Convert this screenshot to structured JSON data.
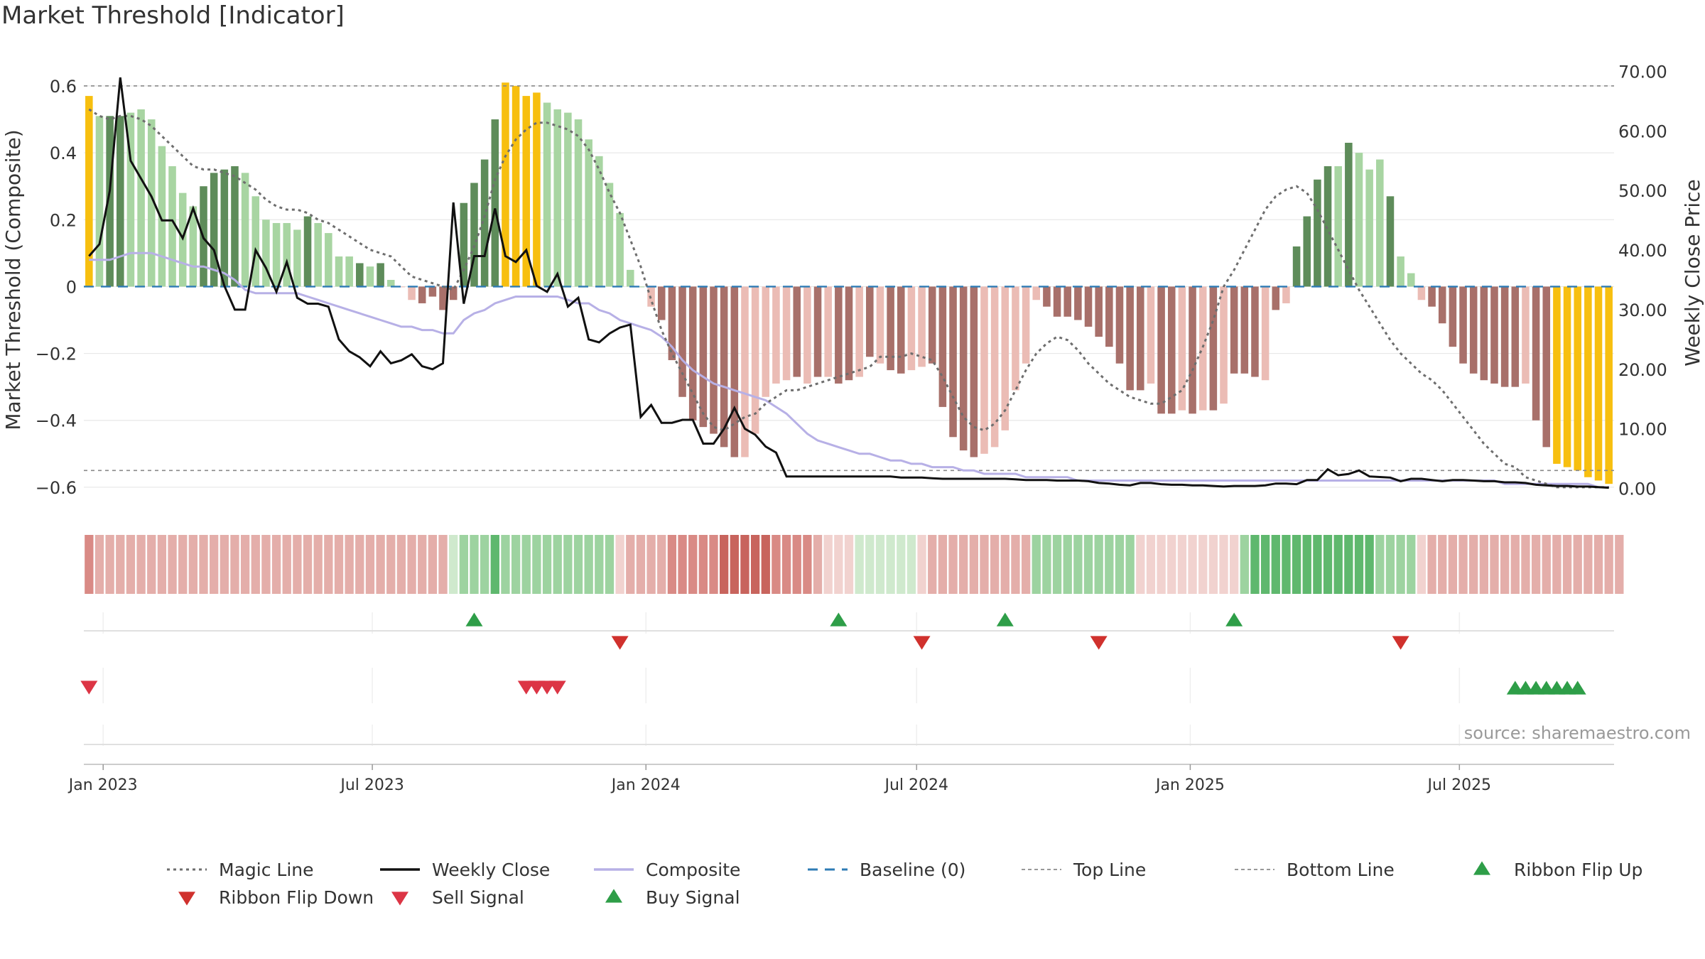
{
  "chart_data": {
    "type": "bar",
    "title": "Market Threshold [Indicator]",
    "ylabel": "Market Threshold (Composite)",
    "y2label": "Weekly Close Price",
    "ylim": [
      -0.63,
      0.67
    ],
    "y2lim": [
      -1.5,
      71.5
    ],
    "y_ticks": [
      0.6,
      0.4,
      0.2,
      0,
      -0.2,
      -0.4,
      -0.6
    ],
    "y_tick_labels": [
      "0.6",
      "0.4",
      "0.2",
      "0",
      "−0.2",
      "−0.4",
      "−0.6"
    ],
    "y2_ticks": [
      70,
      60,
      50,
      40,
      30,
      20,
      10,
      0
    ],
    "y2_tick_labels": [
      "70.00",
      "60.00",
      "50.00",
      "40.00",
      "30.00",
      "20.00",
      "10.00",
      "0.00"
    ],
    "x_ticks": [
      "2023-01-01",
      "2023-07-01",
      "2024-01-01",
      "2024-07-01",
      "2025-01-01",
      "2025-07-01"
    ],
    "x_tick_labels": [
      "Jan 2023",
      "Jul 2023",
      "Jan 2024",
      "Jul 2024",
      "Jan 2025",
      "Jul 2025"
    ],
    "x_start": "2022-12-19",
    "source": "source: sharemaestro.com",
    "top_line": 0.6,
    "bottom_line": -0.55,
    "baseline": 0,
    "grid": true,
    "colors": {
      "bull_strong": "#5e8c5a",
      "bull_light": "#a8d5a2",
      "bear_strong": "#a8706a",
      "bear_light": "#ebbcb5",
      "extreme": "#f7bf0f",
      "weekly_close": "#111111",
      "composite": "#b7b0e6",
      "magic_line": "#6e6e6e",
      "baseline": "#2e7bb5",
      "ribbon_flip_up": "#2e9e48",
      "ribbon_flip_down": "#d0312d",
      "sell_signal": "#dc3545",
      "buy_signal": "#2e9e48"
    },
    "bars": [
      0.57,
      0.51,
      0.51,
      0.51,
      0.52,
      0.53,
      0.5,
      0.42,
      0.36,
      0.28,
      0.24,
      0.3,
      0.34,
      0.35,
      0.36,
      0.34,
      0.27,
      0.2,
      0.19,
      0.19,
      0.17,
      0.21,
      0.19,
      0.16,
      0.09,
      0.09,
      0.07,
      0.06,
      0.07,
      0.02,
      0.0,
      -0.04,
      -0.05,
      -0.03,
      -0.07,
      -0.04,
      0.25,
      0.31,
      0.38,
      0.5,
      0.61,
      0.6,
      0.57,
      0.58,
      0.55,
      0.53,
      0.52,
      0.5,
      0.44,
      0.39,
      0.31,
      0.22,
      0.05,
      0.0,
      -0.06,
      -0.1,
      -0.22,
      -0.33,
      -0.4,
      -0.42,
      -0.44,
      -0.48,
      -0.51,
      -0.51,
      -0.44,
      -0.33,
      -0.29,
      -0.28,
      -0.27,
      -0.29,
      -0.27,
      -0.27,
      -0.29,
      -0.28,
      -0.27,
      -0.21,
      -0.23,
      -0.25,
      -0.26,
      -0.25,
      -0.24,
      -0.23,
      -0.36,
      -0.45,
      -0.49,
      -0.51,
      -0.5,
      -0.48,
      -0.43,
      -0.31,
      -0.23,
      -0.04,
      -0.06,
      -0.09,
      -0.09,
      -0.1,
      -0.12,
      -0.15,
      -0.18,
      -0.23,
      -0.31,
      -0.31,
      -0.29,
      -0.38,
      -0.38,
      -0.37,
      -0.38,
      -0.37,
      -0.37,
      -0.35,
      -0.26,
      -0.26,
      -0.27,
      -0.28,
      -0.07,
      -0.05,
      0.12,
      0.21,
      0.32,
      0.36,
      0.36,
      0.43,
      0.4,
      0.35,
      0.38,
      0.27,
      0.09,
      0.04,
      -0.04,
      -0.06,
      -0.11,
      -0.18,
      -0.23,
      -0.26,
      -0.28,
      -0.29,
      -0.3,
      -0.3,
      -0.29,
      -0.4,
      -0.48,
      -0.53,
      -0.54,
      -0.55,
      -0.57,
      -0.58,
      -0.59
    ],
    "bar_categories": [
      "e",
      "bl",
      "bs",
      "bs",
      "bl",
      "bl",
      "bl",
      "bl",
      "bl",
      "bl",
      "bl",
      "bs",
      "bs",
      "bs",
      "bs",
      "bl",
      "bl",
      "bl",
      "bl",
      "bl",
      "bl",
      "bs",
      "bl",
      "bl",
      "bl",
      "bl",
      "bs",
      "bl",
      "bs",
      "bl",
      "rl",
      "rl",
      "rs",
      "rs",
      "rs",
      "rs",
      "bs",
      "bs",
      "bs",
      "bs",
      "e",
      "e",
      "e",
      "e",
      "bl",
      "bl",
      "bl",
      "bl",
      "bl",
      "bl",
      "bl",
      "bl",
      "bl",
      "bl",
      "rl",
      "rs",
      "rs",
      "rs",
      "rs",
      "rs",
      "rs",
      "rs",
      "rs",
      "rl",
      "rl",
      "rl",
      "rl",
      "rl",
      "rs",
      "rl",
      "rs",
      "rl",
      "rs",
      "rs",
      "rl",
      "rs",
      "rl",
      "rs",
      "rs",
      "rl",
      "rl",
      "rs",
      "rs",
      "rs",
      "rs",
      "rs",
      "rl",
      "rl",
      "rl",
      "rl",
      "rl",
      "rl",
      "rs",
      "rs",
      "rs",
      "rs",
      "rs",
      "rs",
      "rs",
      "rs",
      "rs",
      "rs",
      "rl",
      "rs",
      "rs",
      "rl",
      "rs",
      "rl",
      "rs",
      "rl",
      "rs",
      "rs",
      "rs",
      "rl",
      "rs",
      "rl",
      "bs",
      "bs",
      "bs",
      "bs",
      "bl",
      "bs",
      "bl",
      "bl",
      "bl",
      "bs",
      "bl",
      "bl",
      "rl",
      "rs",
      "rs",
      "rs",
      "rs",
      "rs",
      "rs",
      "rs",
      "rs",
      "rs",
      "rl",
      "rs",
      "rs",
      "e",
      "e",
      "e",
      "e",
      "e",
      "e"
    ],
    "weekly_close": [
      39,
      41,
      50,
      69,
      55,
      52,
      49,
      45,
      45,
      42,
      47,
      42,
      40,
      34,
      30,
      30,
      40,
      37,
      33,
      38,
      32,
      31,
      31,
      30.5,
      25,
      23,
      22,
      20.5,
      23,
      21,
      21.5,
      22.5,
      20.5,
      20,
      21,
      48,
      31,
      39,
      39,
      47,
      39,
      38,
      40,
      34,
      33,
      36,
      30.5,
      32,
      25,
      24.5,
      26,
      27,
      27.5,
      12,
      14,
      11,
      11,
      11.5,
      11.5,
      7.5,
      7.5,
      10,
      13.5,
      10,
      9,
      7,
      6,
      2,
      2,
      2,
      2,
      2,
      2,
      2,
      2,
      2,
      2,
      2,
      1.8,
      1.8,
      1.8,
      1.7,
      1.6,
      1.6,
      1.6,
      1.6,
      1.6,
      1.6,
      1.6,
      1.5,
      1.4,
      1.4,
      1.4,
      1.3,
      1.3,
      1.3,
      1.2,
      0.9,
      0.8,
      0.6,
      0.5,
      0.9,
      0.9,
      0.7,
      0.6,
      0.6,
      0.5,
      0.5,
      0.4,
      0.3,
      0.4,
      0.4,
      0.4,
      0.5,
      0.8,
      0.8,
      0.7,
      1.4,
      1.4,
      3.2,
      2.2,
      2.4,
      3.0,
      2.0,
      1.9,
      1.8,
      1.2,
      1.6,
      1.6,
      1.4,
      1.2,
      1.4,
      1.4,
      1.3,
      1.2,
      1.2,
      1.0,
      1.0,
      0.9,
      0.6,
      0.5,
      0.4,
      0.4,
      0.3,
      0.3,
      0.2,
      0.1
    ],
    "composite": [
      0.08,
      0.08,
      0.08,
      0.09,
      0.1,
      0.1,
      0.1,
      0.09,
      0.08,
      0.07,
      0.06,
      0.06,
      0.05,
      0.04,
      0.02,
      -0.01,
      -0.02,
      -0.02,
      -0.02,
      -0.02,
      -0.02,
      -0.03,
      -0.04,
      -0.05,
      -0.06,
      -0.07,
      -0.08,
      -0.09,
      -0.1,
      -0.11,
      -0.12,
      -0.12,
      -0.13,
      -0.13,
      -0.14,
      -0.14,
      -0.1,
      -0.08,
      -0.07,
      -0.05,
      -0.04,
      -0.03,
      -0.03,
      -0.03,
      -0.03,
      -0.03,
      -0.04,
      -0.05,
      -0.05,
      -0.07,
      -0.08,
      -0.1,
      -0.11,
      -0.12,
      -0.13,
      -0.15,
      -0.18,
      -0.22,
      -0.25,
      -0.27,
      -0.29,
      -0.3,
      -0.31,
      -0.32,
      -0.33,
      -0.34,
      -0.36,
      -0.38,
      -0.41,
      -0.44,
      -0.46,
      -0.47,
      -0.48,
      -0.49,
      -0.5,
      -0.5,
      -0.51,
      -0.52,
      -0.52,
      -0.53,
      -0.53,
      -0.54,
      -0.54,
      -0.54,
      -0.55,
      -0.55,
      -0.56,
      -0.56,
      -0.56,
      -0.56,
      -0.57,
      -0.57,
      -0.57,
      -0.57,
      -0.57,
      -0.58,
      -0.58,
      -0.58,
      -0.58,
      -0.58,
      -0.58,
      -0.58,
      -0.58,
      -0.58,
      -0.58,
      -0.58,
      -0.58,
      -0.58,
      -0.58,
      -0.58,
      -0.58,
      -0.58,
      -0.58,
      -0.58,
      -0.58,
      -0.58,
      -0.58,
      -0.58,
      -0.58,
      -0.58,
      -0.58,
      -0.58,
      -0.58,
      -0.58,
      -0.58,
      -0.58,
      -0.58,
      -0.58,
      -0.58,
      -0.58,
      -0.58,
      -0.58,
      -0.58,
      -0.58,
      -0.58,
      -0.58,
      -0.59,
      -0.59,
      -0.59,
      -0.59,
      -0.59,
      -0.59,
      -0.59,
      -0.59,
      -0.59,
      -0.6,
      -0.6
    ],
    "magic_line": [
      0.53,
      0.51,
      0.5,
      0.51,
      0.51,
      0.5,
      0.48,
      0.45,
      0.42,
      0.39,
      0.36,
      0.35,
      0.35,
      0.34,
      0.33,
      0.31,
      0.29,
      0.26,
      0.24,
      0.23,
      0.23,
      0.22,
      0.2,
      0.19,
      0.17,
      0.15,
      0.13,
      0.11,
      0.1,
      0.09,
      0.06,
      0.03,
      0.02,
      0.01,
      0.0,
      -0.01,
      0.05,
      0.12,
      0.21,
      0.32,
      0.39,
      0.44,
      0.47,
      0.49,
      0.49,
      0.48,
      0.47,
      0.45,
      0.41,
      0.35,
      0.28,
      0.22,
      0.14,
      0.06,
      -0.04,
      -0.13,
      -0.2,
      -0.26,
      -0.32,
      -0.38,
      -0.42,
      -0.43,
      -0.41,
      -0.39,
      -0.38,
      -0.35,
      -0.33,
      -0.31,
      -0.31,
      -0.3,
      -0.29,
      -0.28,
      -0.27,
      -0.26,
      -0.25,
      -0.24,
      -0.21,
      -0.21,
      -0.21,
      -0.2,
      -0.21,
      -0.22,
      -0.27,
      -0.33,
      -0.39,
      -0.42,
      -0.43,
      -0.41,
      -0.37,
      -0.31,
      -0.25,
      -0.2,
      -0.17,
      -0.15,
      -0.16,
      -0.19,
      -0.23,
      -0.26,
      -0.29,
      -0.31,
      -0.33,
      -0.34,
      -0.35,
      -0.35,
      -0.33,
      -0.31,
      -0.25,
      -0.18,
      -0.1,
      0.0,
      0.05,
      0.11,
      0.17,
      0.23,
      0.27,
      0.29,
      0.3,
      0.28,
      0.23,
      0.17,
      0.11,
      0.05,
      -0.01,
      -0.06,
      -0.11,
      -0.16,
      -0.2,
      -0.23,
      -0.26,
      -0.28,
      -0.31,
      -0.35,
      -0.39,
      -0.43,
      -0.47,
      -0.5,
      -0.53,
      -0.54,
      -0.57,
      -0.58,
      -0.59,
      -0.6,
      -0.6,
      -0.6,
      -0.6,
      -0.6,
      -0.6
    ],
    "ribbon_shades": [
      "r3",
      "r2",
      "r2",
      "r2",
      "r2",
      "r2",
      "r2",
      "r2",
      "r2",
      "r2",
      "r2",
      "r2",
      "r2",
      "r2",
      "r2",
      "r2",
      "r2",
      "r2",
      "r2",
      "r2",
      "r2",
      "r2",
      "r2",
      "r2",
      "r2",
      "r2",
      "r2",
      "r2",
      "r2",
      "r2",
      "r2",
      "r2",
      "r2",
      "r2",
      "r2",
      "g1",
      "g2",
      "g2",
      "g2",
      "g3",
      "g2",
      "g2",
      "g2",
      "g2",
      "g2",
      "g2",
      "g2",
      "g2",
      "g2",
      "g2",
      "g2",
      "r1",
      "r2",
      "r2",
      "r2",
      "r2",
      "r3",
      "r3",
      "r3",
      "r3",
      "r3",
      "r4",
      "r4",
      "r4",
      "r4",
      "r4",
      "r3",
      "r3",
      "r3",
      "r3",
      "r2",
      "r1",
      "r1",
      "r1",
      "g1",
      "g1",
      "g1",
      "g1",
      "g1",
      "g1",
      "r1",
      "r2",
      "r2",
      "r2",
      "r2",
      "r2",
      "r2",
      "r2",
      "r2",
      "r2",
      "r2",
      "g2",
      "g2",
      "g2",
      "g2",
      "g2",
      "g2",
      "g2",
      "g2",
      "g2",
      "g2",
      "r1",
      "r1",
      "r1",
      "r1",
      "r1",
      "r1",
      "r1",
      "r1",
      "r1",
      "r1",
      "g2",
      "g3",
      "g3",
      "g3",
      "g3",
      "g3",
      "g3",
      "g3",
      "g3",
      "g3",
      "g3",
      "g3",
      "g3",
      "g2",
      "g2",
      "g2",
      "g2",
      "r1",
      "r2",
      "r2",
      "r2",
      "r2",
      "r2",
      "r2",
      "r2",
      "r2",
      "r2",
      "r2",
      "r2",
      "r2",
      "r2",
      "r2",
      "r2",
      "r2",
      "r2",
      "r2",
      "r2"
    ],
    "ribbon_flip_up": [
      "2023-09-04",
      "2024-05-06",
      "2024-08-26",
      "2025-01-27"
    ],
    "ribbon_flip_down": [
      "2023-12-11",
      "2024-07-01",
      "2024-10-28",
      "2025-05-19"
    ],
    "sell_signals": [
      "2022-12-19",
      "2023-10-09",
      "2023-10-16",
      "2023-10-23",
      "2023-10-30"
    ],
    "buy_signals": [
      "2025-08-04",
      "2025-08-11",
      "2025-08-18",
      "2025-08-25",
      "2025-09-01",
      "2025-09-08",
      "2025-09-15"
    ],
    "legend": [
      {
        "label": "Magic Line",
        "type": "dotted",
        "color": "#6e6e6e"
      },
      {
        "label": "Weekly Close",
        "type": "solid",
        "color": "#111111"
      },
      {
        "label": "Composite",
        "type": "solid",
        "color": "#b7b0e6"
      },
      {
        "label": "Baseline (0)",
        "type": "dashed",
        "color": "#2e7bb5"
      },
      {
        "label": "Top Line",
        "type": "dashed-thin",
        "color": "#999999"
      },
      {
        "label": "Bottom Line",
        "type": "dashed-thin",
        "color": "#999999"
      },
      {
        "label": "Ribbon Flip Up",
        "type": "triangle-up",
        "color": "#2e9e48"
      },
      {
        "label": "Ribbon Flip Down",
        "type": "triangle-down",
        "color": "#d0312d"
      },
      {
        "label": "Sell Signal",
        "type": "triangle-down",
        "color": "#dc3545"
      },
      {
        "label": "Buy Signal",
        "type": "triangle-up",
        "color": "#2e9e48"
      }
    ],
    "legend_position": "bottom"
  }
}
